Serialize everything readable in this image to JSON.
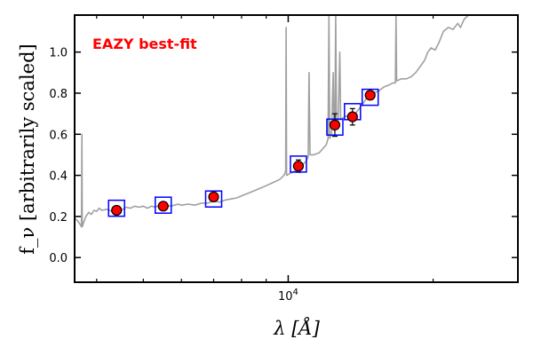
{
  "chart_data": {
    "type": "scatter",
    "annotation": "EAZY best-fit",
    "annotation_color": "#ff0000",
    "xlabel": "λ [Å]",
    "ylabel": "f_ν [arbitrarily scaled]",
    "x_scale": "log",
    "xlim": [
      3600,
      30000
    ],
    "ylim": [
      -0.12,
      1.18
    ],
    "x_tick_labels": [
      {
        "value": 10000,
        "base": "10",
        "exp": "4"
      }
    ],
    "y_ticks": [
      0.0,
      0.2,
      0.4,
      0.6,
      0.8,
      1.0
    ],
    "y_tick_labels": [
      "0.0",
      "0.2",
      "0.4",
      "0.6",
      "0.8",
      "1.0"
    ],
    "x_minor_ticks": [
      4000,
      5000,
      6000,
      7000,
      8000,
      9000,
      20000,
      30000
    ],
    "grid": false,
    "observed_photometry": {
      "marker": "circle",
      "color": "#ff0000",
      "edgecolor": "#000000",
      "points": [
        {
          "x": 4400,
          "y": 0.23,
          "err": 0.02
        },
        {
          "x": 5500,
          "y": 0.25,
          "err": 0.015
        },
        {
          "x": 7000,
          "y": 0.295,
          "err": 0.015
        },
        {
          "x": 10500,
          "y": 0.445,
          "err": 0.03
        },
        {
          "x": 12500,
          "y": 0.645,
          "err": 0.055
        },
        {
          "x": 13600,
          "y": 0.685,
          "err": 0.04
        },
        {
          "x": 14800,
          "y": 0.79,
          "err": 0.02
        }
      ]
    },
    "model_photometry": {
      "marker": "square",
      "edgecolor": "#0000ff",
      "points": [
        {
          "x": 4400,
          "y": 0.24
        },
        {
          "x": 5500,
          "y": 0.255
        },
        {
          "x": 7000,
          "y": 0.285
        },
        {
          "x": 10500,
          "y": 0.455
        },
        {
          "x": 12500,
          "y": 0.635
        },
        {
          "x": 13600,
          "y": 0.71
        },
        {
          "x": 14800,
          "y": 0.78
        }
      ]
    },
    "template_spectrum": {
      "color": "#a0a0a0",
      "points": [
        [
          3600,
          0.19
        ],
        [
          3650,
          0.18
        ],
        [
          3700,
          0.16
        ],
        [
          3720,
          0.15
        ],
        [
          3727,
          0.6
        ],
        [
          3734,
          0.15
        ],
        [
          3760,
          0.17
        ],
        [
          3800,
          0.2
        ],
        [
          3850,
          0.22
        ],
        [
          3900,
          0.21
        ],
        [
          3950,
          0.23
        ],
        [
          4000,
          0.225
        ],
        [
          4050,
          0.24
        ],
        [
          4100,
          0.23
        ],
        [
          4200,
          0.235
        ],
        [
          4300,
          0.225
        ],
        [
          4400,
          0.235
        ],
        [
          4500,
          0.23
        ],
        [
          4600,
          0.245
        ],
        [
          4700,
          0.24
        ],
        [
          4800,
          0.25
        ],
        [
          4900,
          0.245
        ],
        [
          5000,
          0.25
        ],
        [
          5100,
          0.24
        ],
        [
          5200,
          0.25
        ],
        [
          5300,
          0.245
        ],
        [
          5400,
          0.255
        ],
        [
          5500,
          0.25
        ],
        [
          5600,
          0.255
        ],
        [
          5700,
          0.25
        ],
        [
          5800,
          0.255
        ],
        [
          5900,
          0.26
        ],
        [
          6000,
          0.255
        ],
        [
          6200,
          0.26
        ],
        [
          6400,
          0.255
        ],
        [
          6600,
          0.265
        ],
        [
          6800,
          0.265
        ],
        [
          7000,
          0.275
        ],
        [
          7200,
          0.27
        ],
        [
          7400,
          0.28
        ],
        [
          7600,
          0.285
        ],
        [
          7800,
          0.29
        ],
        [
          8000,
          0.3
        ],
        [
          8200,
          0.31
        ],
        [
          8400,
          0.32
        ],
        [
          8600,
          0.33
        ],
        [
          8800,
          0.34
        ],
        [
          9000,
          0.35
        ],
        [
          9200,
          0.36
        ],
        [
          9400,
          0.37
        ],
        [
          9600,
          0.38
        ],
        [
          9800,
          0.4
        ],
        [
          9880,
          0.42
        ],
        [
          9900,
          1.12
        ],
        [
          9920,
          0.4
        ],
        [
          10100,
          0.41
        ],
        [
          10300,
          0.42
        ],
        [
          10500,
          0.43
        ],
        [
          10700,
          0.45
        ],
        [
          10900,
          0.47
        ],
        [
          11000,
          0.49
        ],
        [
          11050,
          0.9
        ],
        [
          11100,
          0.5
        ],
        [
          11300,
          0.5
        ],
        [
          11600,
          0.51
        ],
        [
          11800,
          0.53
        ],
        [
          12000,
          0.55
        ],
        [
          12100,
          0.58
        ],
        [
          12150,
          1.18
        ],
        [
          12200,
          0.58
        ],
        [
          12300,
          0.6
        ],
        [
          12400,
          0.9
        ],
        [
          12450,
          0.62
        ],
        [
          12500,
          0.64
        ],
        [
          12550,
          1.18
        ],
        [
          12600,
          0.65
        ],
        [
          12700,
          0.66
        ],
        [
          12800,
          1.0
        ],
        [
          12850,
          0.67
        ],
        [
          13000,
          0.68
        ],
        [
          13200,
          0.69
        ],
        [
          13400,
          0.68
        ],
        [
          13600,
          0.69
        ],
        [
          13800,
          0.7
        ],
        [
          14000,
          0.72
        ],
        [
          14200,
          0.74
        ],
        [
          14400,
          0.76
        ],
        [
          14600,
          0.78
        ],
        [
          14800,
          0.79
        ],
        [
          15000,
          0.8
        ],
        [
          15400,
          0.81
        ],
        [
          15800,
          0.83
        ],
        [
          16200,
          0.84
        ],
        [
          16500,
          0.85
        ],
        [
          16700,
          0.85
        ],
        [
          16750,
          1.18
        ],
        [
          16800,
          0.86
        ],
        [
          17200,
          0.87
        ],
        [
          17600,
          0.87
        ],
        [
          18000,
          0.88
        ],
        [
          18400,
          0.9
        ],
        [
          18800,
          0.93
        ],
        [
          19200,
          0.96
        ],
        [
          19500,
          1.0
        ],
        [
          19800,
          1.02
        ],
        [
          20200,
          1.01
        ],
        [
          20600,
          1.05
        ],
        [
          21000,
          1.1
        ],
        [
          21500,
          1.12
        ],
        [
          22000,
          1.11
        ],
        [
          22500,
          1.14
        ],
        [
          22800,
          1.12
        ],
        [
          23200,
          1.16
        ],
        [
          23700,
          1.18
        ]
      ]
    }
  }
}
